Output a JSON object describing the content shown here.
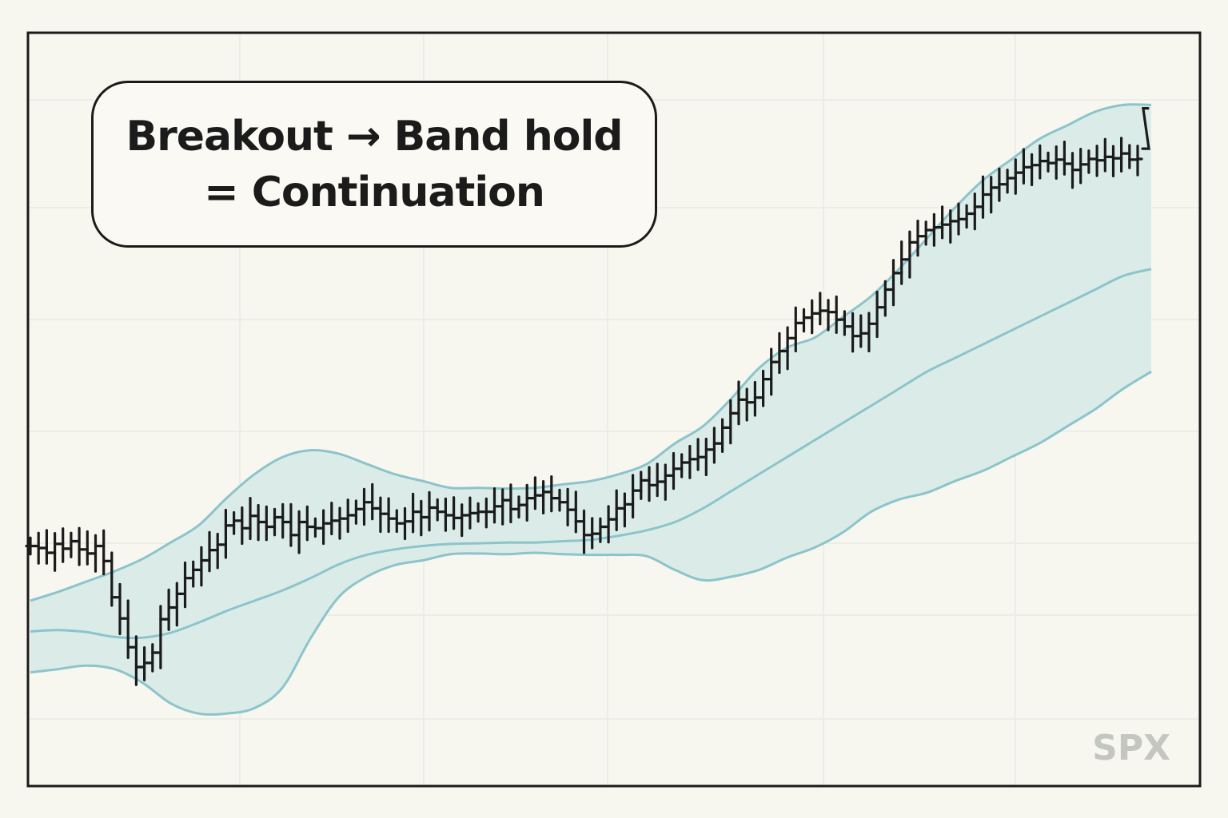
{
  "title": {
    "line1": "Breakout → Band hold",
    "line2": "= Continuation"
  },
  "ticker": "SPX",
  "colors": {
    "background": "#f7f6ef",
    "frame": "#1b1b1b",
    "band_fill": "#dbece8",
    "band_line": "#8cc4cc",
    "bars": "#1b1b1b",
    "grid": "#e7ebe4",
    "ticker": "#c4c7c0"
  },
  "chart_data": {
    "type": "line",
    "grid": true,
    "legend": "none",
    "xlim": [
      0,
      103
    ],
    "ylim": [
      0,
      100
    ],
    "series": [
      {
        "role": "price-bars",
        "values": [
          29.5,
          29.2,
          28.5,
          29.8,
          29.1,
          30.2,
          29.0,
          28.4,
          29.5,
          27.3,
          22.0,
          18.9,
          14.7,
          11.8,
          12.4,
          13.9,
          18.8,
          20.5,
          22.5,
          24.8,
          26.0,
          27.4,
          28.9,
          29.7,
          32.5,
          33.2,
          32.1,
          33.9,
          33.0,
          32.3,
          33.7,
          33.0,
          31.1,
          33.0,
          32.3,
          32.1,
          32.8,
          33.2,
          33.5,
          34.0,
          34.9,
          35.9,
          35.0,
          34.2,
          33.5,
          32.8,
          33.1,
          34.5,
          33.7,
          35.1,
          34.5,
          34.0,
          33.6,
          34.0,
          34.3,
          34.5,
          34.5,
          35.3,
          36.2,
          34.9,
          35.5,
          36.5,
          36.9,
          37.4,
          36.5,
          35.9,
          34.8,
          33.1,
          31.1,
          31.3,
          32.3,
          33.4,
          35.0,
          35.6,
          37.6,
          39.1,
          38.4,
          38.9,
          39.8,
          40.8,
          41.7,
          42.2,
          42.5,
          43.6,
          44.5,
          46.8,
          48.9,
          50.9,
          50.5,
          51.2,
          53.9,
          56.4,
          58.0,
          59.9,
          62.1,
          62.9,
          63.5,
          63.9,
          63.7,
          62.6,
          61.6,
          60.2,
          60.6,
          62.0,
          64.4,
          67.0,
          69.4,
          71.4,
          73.9,
          74.8,
          75.7,
          76.1,
          76.5,
          77.0,
          77.3,
          78.1,
          79.1,
          80.9,
          81.9,
          82.4,
          83.3,
          84.1,
          84.9,
          85.2,
          85.8,
          85.5,
          86.0,
          85.4,
          84.5,
          85.3,
          86.1,
          85.9,
          86.4,
          86.2,
          86.9,
          86.0,
          86.1,
          93.5
        ]
      },
      {
        "role": "upper-band",
        "values": [
          21.5,
          22.8,
          24.3,
          25.8,
          27.6,
          30.0,
          32.5,
          36.5,
          40.0,
          42.5,
          43.5,
          43.0,
          41.5,
          40.0,
          39.0,
          38.0,
          38.0,
          37.9,
          38.0,
          38.5,
          39.0,
          40.0,
          41.5,
          44.5,
          47.0,
          51.0,
          55.5,
          58.5,
          60.0,
          63.0,
          66.0,
          70.0,
          74.5,
          79.0,
          83.0,
          86.0,
          89.0,
          91.0,
          93.0,
          94.0,
          94.0
        ]
      },
      {
        "role": "middle-band",
        "values": [
          17.0,
          17.2,
          16.9,
          16.2,
          16.1,
          16.8,
          18.3,
          20.0,
          21.5,
          23.0,
          24.8,
          26.8,
          28.2,
          29.0,
          29.5,
          29.8,
          29.9,
          30.0,
          30.0,
          30.2,
          30.4,
          31.0,
          31.8,
          33.0,
          35.0,
          37.5,
          40.0,
          42.5,
          45.0,
          47.5,
          50.0,
          52.5,
          55.0,
          57.0,
          59.0,
          61.0,
          63.0,
          65.0,
          67.0,
          69.0,
          70.0
        ]
      },
      {
        "role": "lower-band",
        "values": [
          11.0,
          11.5,
          12.0,
          11.5,
          9.5,
          6.5,
          5.0,
          5.0,
          5.8,
          8.8,
          16.0,
          22.0,
          25.0,
          26.7,
          27.4,
          28.3,
          28.4,
          28.3,
          28.5,
          28.3,
          28.2,
          28.2,
          28.0,
          26.0,
          24.5,
          25.0,
          26.0,
          27.8,
          29.3,
          31.5,
          34.5,
          36.3,
          37.3,
          39.0,
          40.5,
          42.5,
          44.5,
          47.0,
          49.5,
          52.5,
          55.0
        ]
      }
    ]
  }
}
